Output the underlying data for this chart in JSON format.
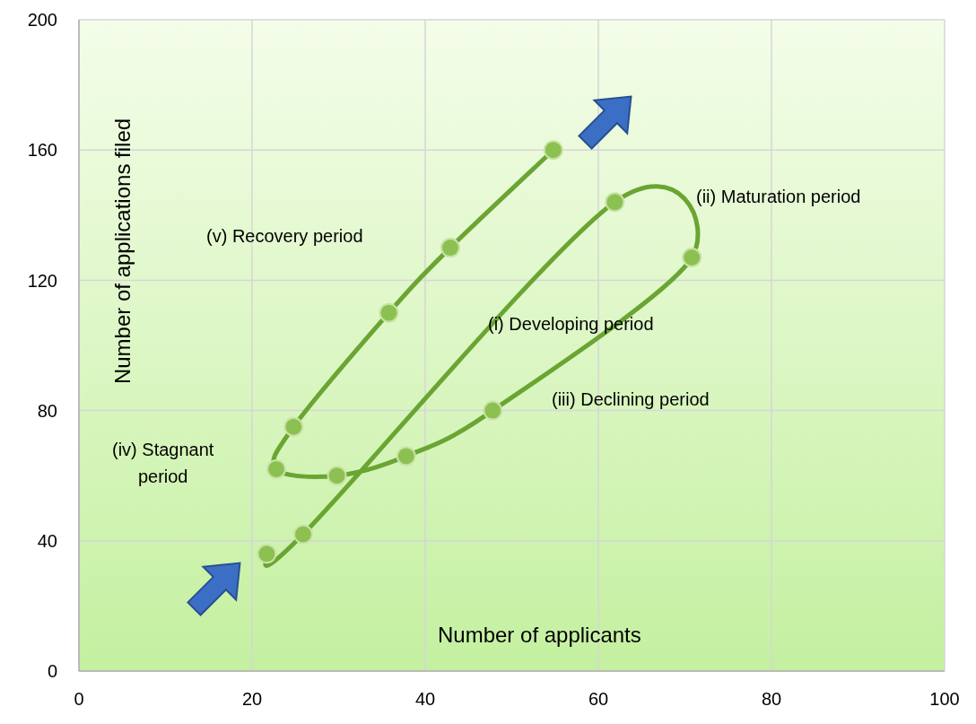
{
  "chart_data": {
    "type": "line",
    "xlabel": "Number of applicants",
    "ylabel": "Number of applications filed",
    "series": [
      {
        "color": "#6aa532",
        "x": [
          21.7,
          25.9,
          61.9,
          70.8,
          47.8,
          37.8,
          29.8,
          22.8,
          24.8,
          35.8,
          42.9,
          54.8
        ],
        "values": [
          36,
          42,
          144,
          127,
          80,
          66,
          60,
          62,
          75,
          110,
          130,
          160
        ]
      }
    ],
    "xlim": [
      0,
      100
    ],
    "xticks": [
      0,
      20,
      40,
      60,
      80,
      100
    ],
    "ylim": [
      0,
      200
    ],
    "yticks": [
      0,
      40,
      80,
      120,
      160,
      200
    ],
    "grid": true,
    "marker": "circle",
    "line_style": "solid",
    "annotations": [
      "(ii) Maturation period",
      "(v) Recovery period",
      "(i) Developing period",
      "(iii) Declining period",
      "(iv) Stagnant\nperiod"
    ]
  }
}
